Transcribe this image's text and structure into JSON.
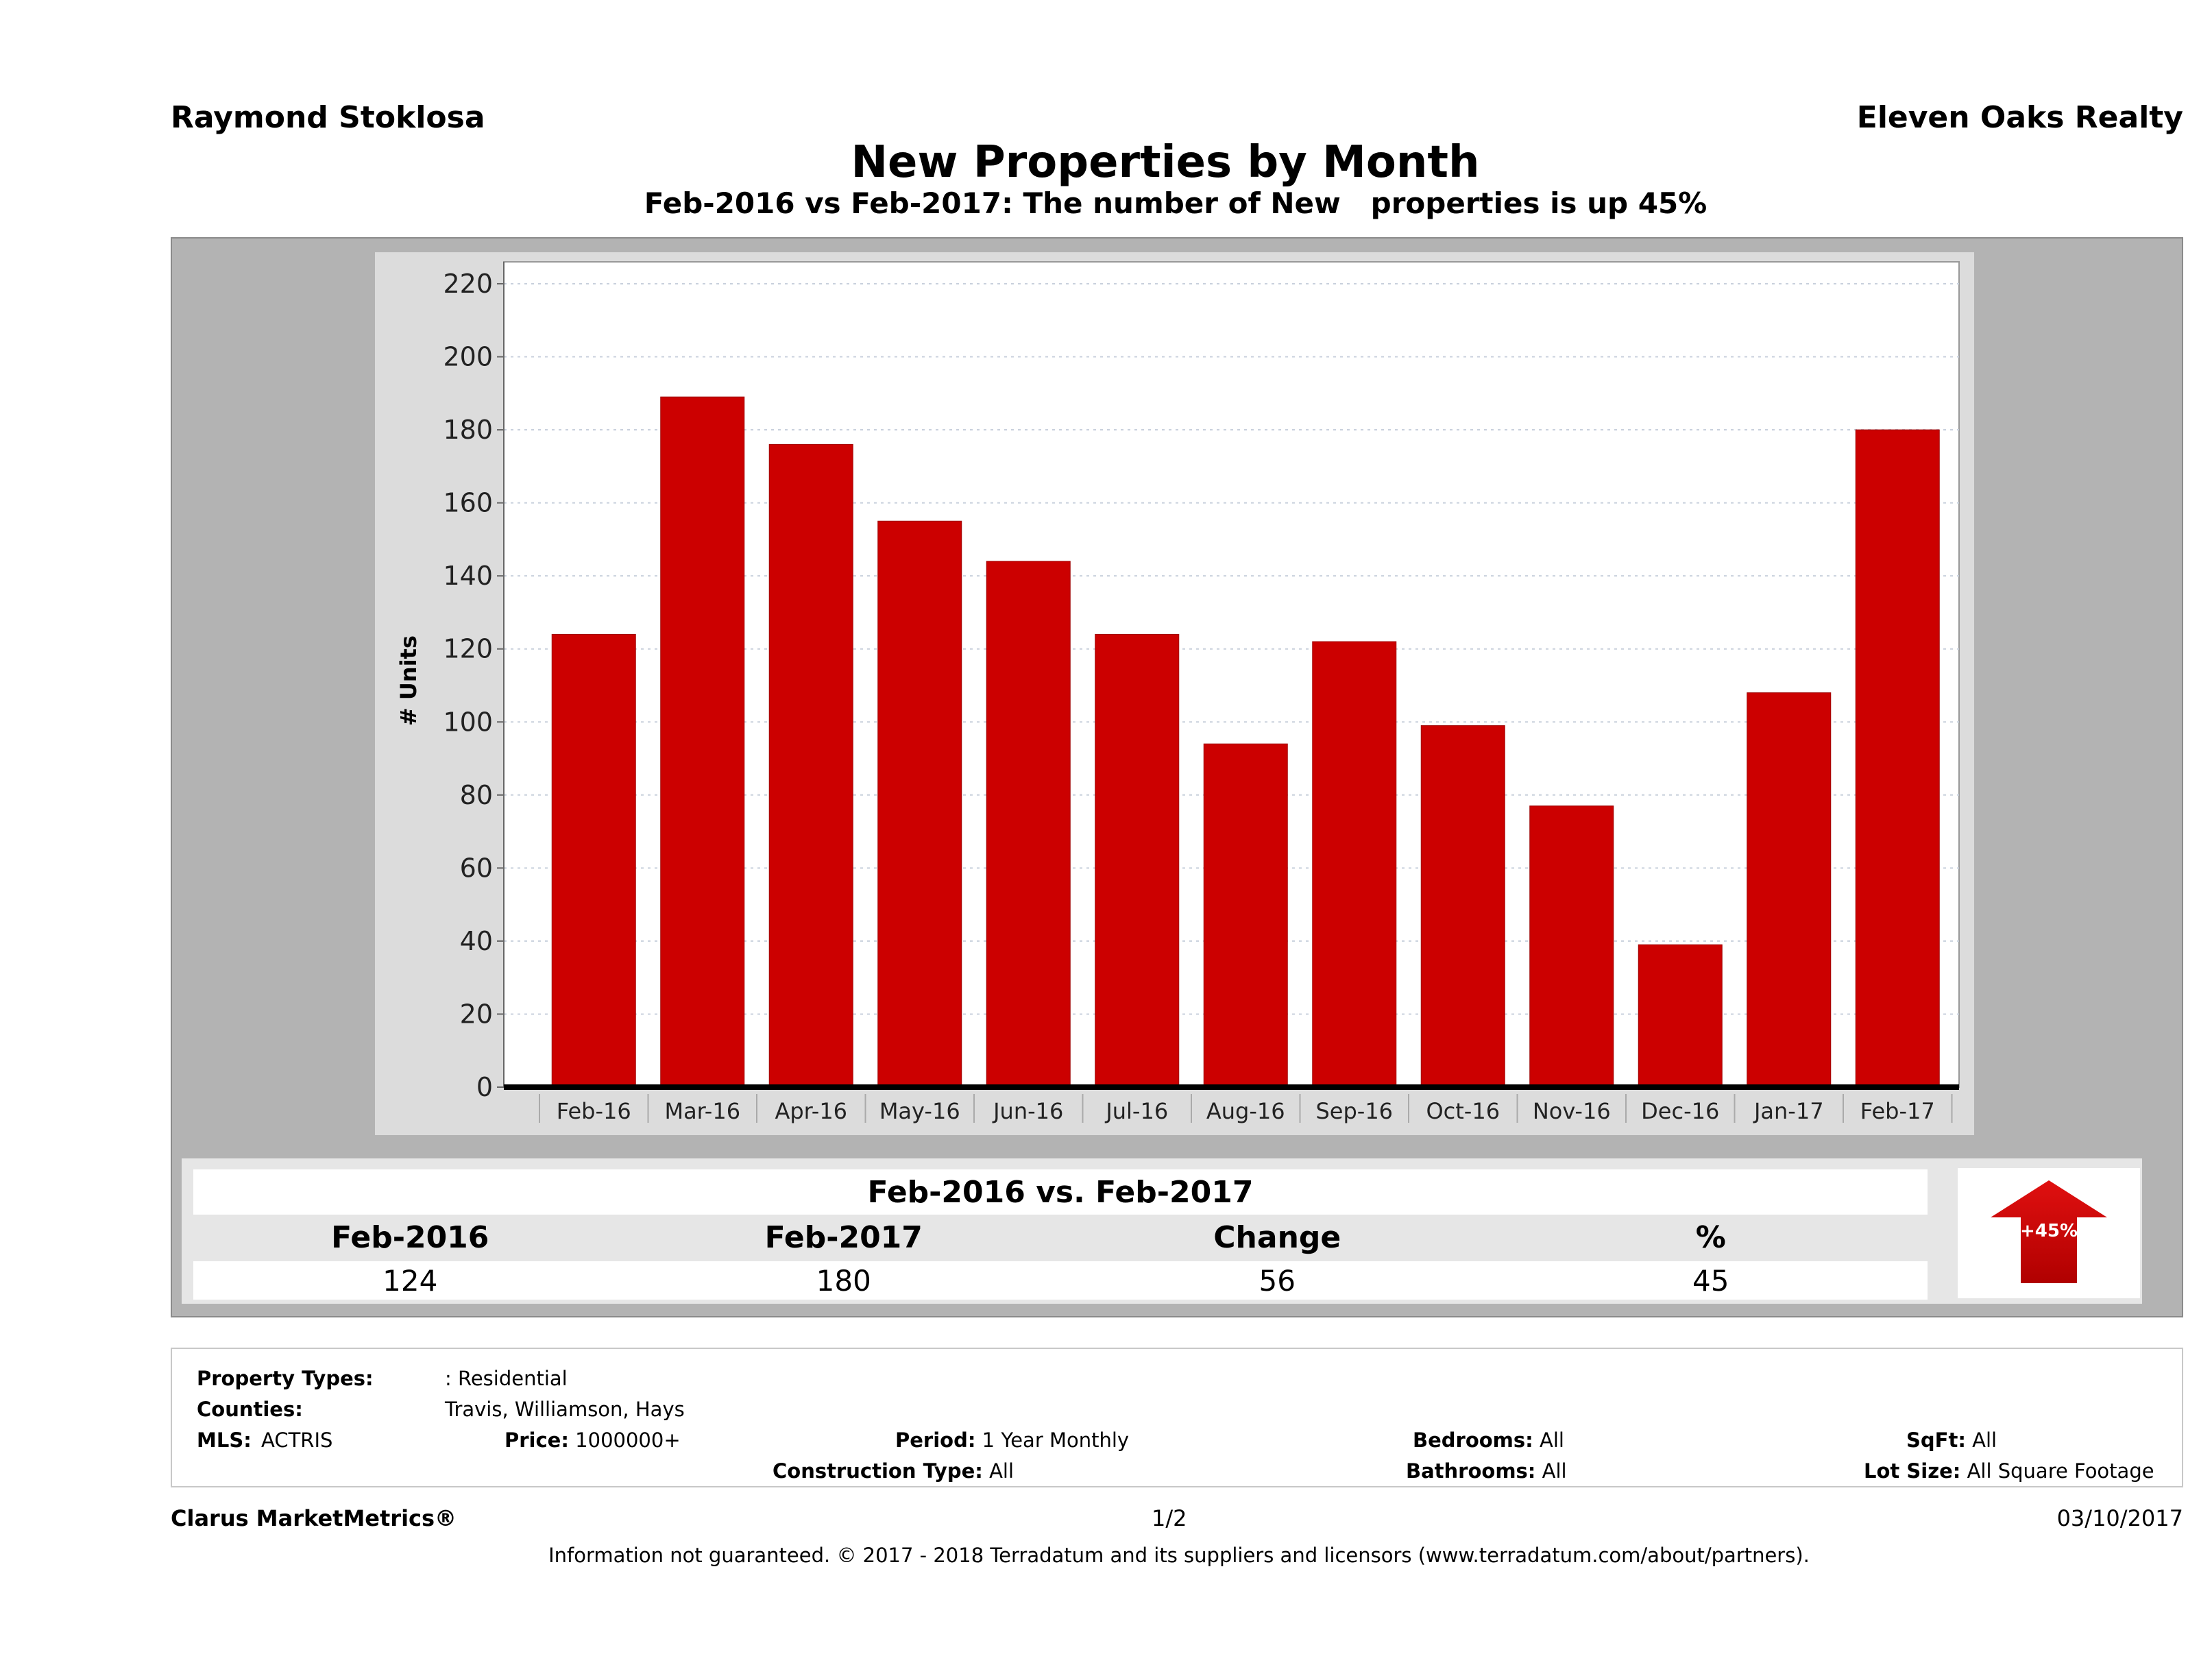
{
  "header": {
    "agent_name": "Raymond Stoklosa",
    "company_name": "Eleven Oaks Realty",
    "title": "New Properties by Month",
    "subtitle": "Feb-2016 vs Feb-2017: The number of New   properties is up 45%"
  },
  "chart_data": {
    "type": "bar",
    "title": "New Properties by Month",
    "xlabel": "",
    "ylabel": "# Units",
    "ylim": [
      0,
      226
    ],
    "yticks": [
      0,
      20,
      40,
      60,
      80,
      100,
      120,
      140,
      160,
      180,
      200,
      220
    ],
    "grid": true,
    "bar_color": "#cc0000",
    "categories": [
      "Feb-16",
      "Mar-16",
      "Apr-16",
      "May-16",
      "Jun-16",
      "Jul-16",
      "Aug-16",
      "Sep-16",
      "Oct-16",
      "Nov-16",
      "Dec-16",
      "Jan-17",
      "Feb-17"
    ],
    "values": [
      124,
      189,
      176,
      155,
      144,
      124,
      94,
      122,
      99,
      77,
      39,
      108,
      180
    ]
  },
  "summary": {
    "title": "Feb-2016 vs. Feb-2017",
    "headers": [
      "Feb-2016",
      "Feb-2017",
      "Change",
      "%"
    ],
    "values": [
      "124",
      "180",
      "56",
      "45"
    ],
    "arrow_label": "+45%",
    "arrow_direction": "up",
    "arrow_color": "#cc0000"
  },
  "info": {
    "property_types_label": "Property Types:",
    "property_types_value": ": Residential",
    "counties_label": "Counties:",
    "counties_value": "Travis, Williamson, Hays",
    "mls_label": "MLS:",
    "mls_value": "ACTRIS",
    "price_label": "Price:",
    "price_value": "1000000+",
    "period_label": "Period:",
    "period_value": "1 Year Monthly",
    "construction_label": "Construction Type:",
    "construction_value": "All",
    "bedrooms_label": "Bedrooms:",
    "bedrooms_value": "All",
    "bathrooms_label": "Bathrooms:",
    "bathrooms_value": "All",
    "sqft_label": "SqFt:",
    "sqft_value": "All",
    "lotsize_label": "Lot Size:",
    "lotsize_value": "All Square Footage"
  },
  "footer": {
    "brand": "Clarus MarketMetrics®",
    "page": "1/2",
    "date": "03/10/2017",
    "disclaimer": "Information not guaranteed. © 2017 - 2018 Terradatum and its suppliers and licensors (www.terradatum.com/about/partners)."
  }
}
